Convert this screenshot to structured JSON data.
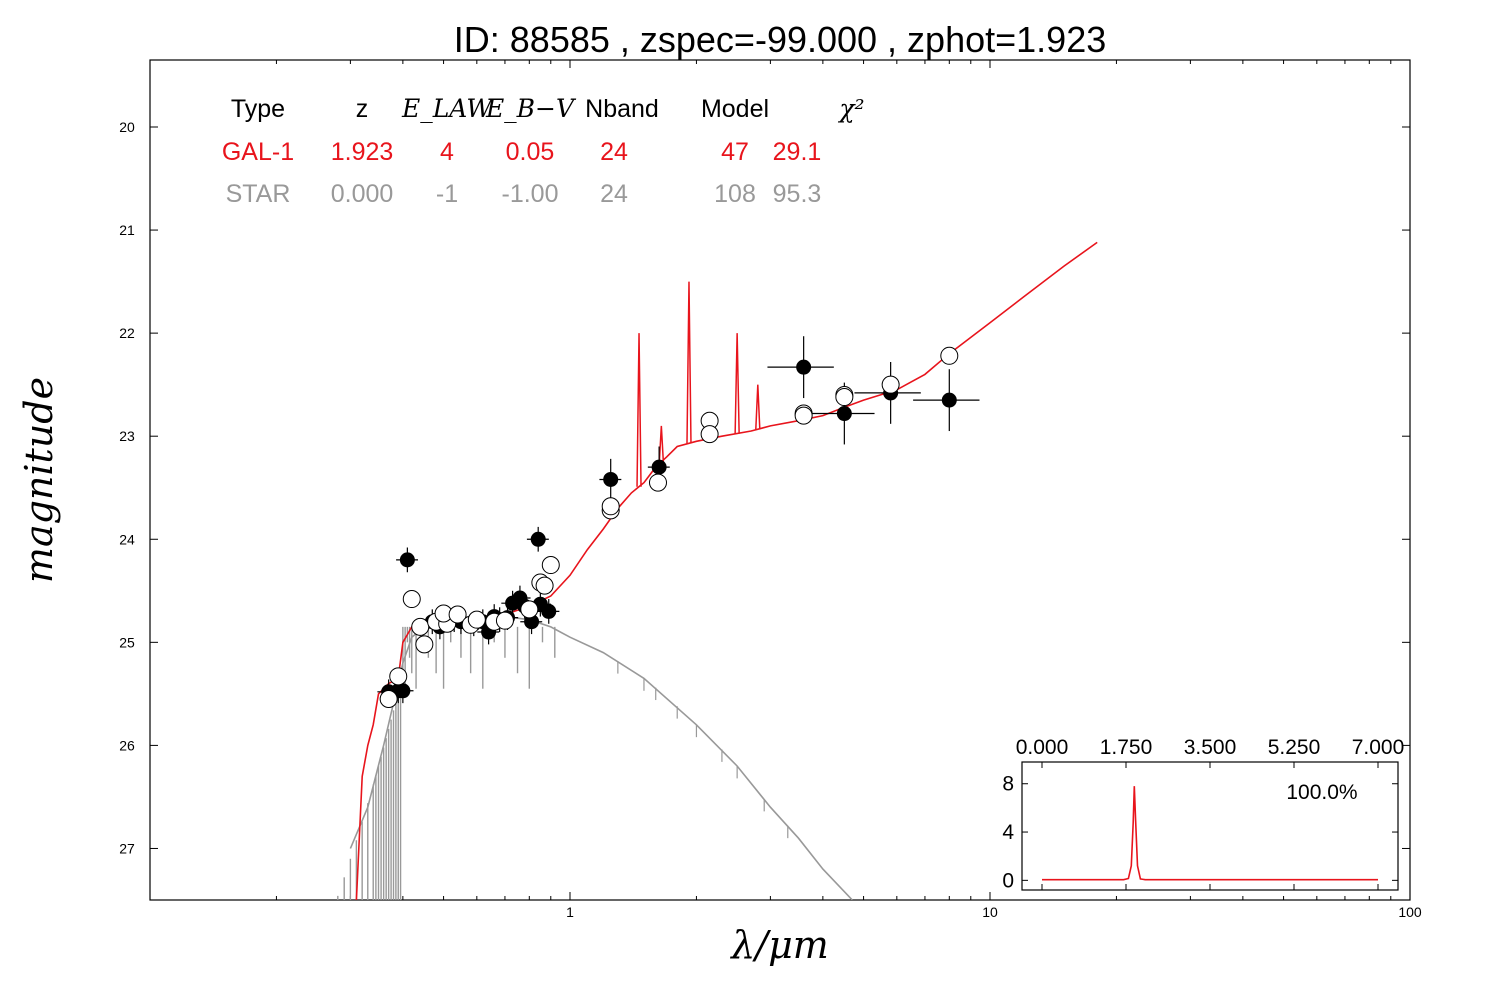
{
  "title": "ID:  88585 , zspec=-99.000 , zphot=1.923",
  "chart_data": {
    "type": "scatter",
    "xlabel": "λ/μm",
    "ylabel": "magnitude",
    "xscale": "log",
    "xlim": [
      0.1,
      100
    ],
    "ylim": [
      27.5,
      19.35
    ],
    "y_inverted": true,
    "x_ticks": [
      "1",
      "10",
      "100"
    ],
    "y_ticks": [
      "20",
      "21",
      "22",
      "23",
      "24",
      "25",
      "26",
      "27"
    ],
    "colors": {
      "galaxy": "#e8141c",
      "star": "#999999",
      "points": "#000000"
    },
    "fit_table": {
      "headers": [
        "Type",
        "z",
        "E_LAW",
        "E_B−V",
        "Nband",
        "Model",
        "χ²"
      ],
      "rows": [
        {
          "color": "#e8141c",
          "cells": [
            "GAL-1",
            "1.923",
            "4",
            "0.05",
            "24",
            "47",
            "29.1"
          ]
        },
        {
          "color": "#999999",
          "cells": [
            "STAR",
            "0.000",
            "-1",
            "-1.00",
            "24",
            "108",
            "95.3"
          ]
        }
      ]
    },
    "series": [
      {
        "kind": "model-galaxy",
        "points": [
          [
            0.31,
            27.5
          ],
          [
            0.32,
            26.3
          ],
          [
            0.33,
            26.0
          ],
          [
            0.34,
            25.8
          ],
          [
            0.35,
            25.5
          ],
          [
            0.37,
            25.4
          ],
          [
            0.39,
            25.35
          ],
          [
            0.4,
            25.0
          ],
          [
            0.42,
            24.85
          ],
          [
            0.45,
            24.85
          ],
          [
            0.5,
            24.83
          ],
          [
            0.55,
            24.78
          ],
          [
            0.6,
            24.75
          ],
          [
            0.65,
            24.75
          ],
          [
            0.7,
            24.73
          ],
          [
            0.8,
            24.65
          ],
          [
            0.9,
            24.55
          ],
          [
            1.0,
            24.35
          ],
          [
            1.1,
            24.1
          ],
          [
            1.2,
            23.9
          ],
          [
            1.3,
            23.7
          ],
          [
            1.4,
            23.55
          ],
          [
            1.5,
            23.45
          ],
          [
            1.6,
            23.3
          ],
          [
            1.7,
            23.2
          ],
          [
            1.8,
            23.1
          ],
          [
            2.0,
            23.05
          ],
          [
            2.3,
            23.0
          ],
          [
            2.7,
            22.95
          ],
          [
            3.0,
            22.9
          ],
          [
            3.5,
            22.85
          ],
          [
            4.0,
            22.8
          ],
          [
            4.5,
            22.72
          ],
          [
            5.0,
            22.65
          ],
          [
            6.0,
            22.55
          ],
          [
            7.0,
            22.4
          ],
          [
            8.0,
            22.2
          ],
          [
            10.0,
            21.9
          ],
          [
            12.0,
            21.65
          ],
          [
            15.0,
            21.35
          ],
          [
            18.0,
            21.12
          ]
        ],
        "emission_lines": [
          [
            1.46,
            22.0
          ],
          [
            1.65,
            22.9
          ],
          [
            1.92,
            21.5
          ],
          [
            2.5,
            22.0
          ],
          [
            2.8,
            22.5
          ]
        ]
      },
      {
        "kind": "model-star",
        "points": [
          [
            0.3,
            27.0
          ],
          [
            0.33,
            26.6
          ],
          [
            0.36,
            26.0
          ],
          [
            0.4,
            25.2
          ],
          [
            0.42,
            24.95
          ],
          [
            0.45,
            24.85
          ],
          [
            0.5,
            24.83
          ],
          [
            0.55,
            24.8
          ],
          [
            0.6,
            24.78
          ],
          [
            0.7,
            24.75
          ],
          [
            0.8,
            24.78
          ],
          [
            0.9,
            24.85
          ],
          [
            1.0,
            24.95
          ],
          [
            1.2,
            25.1
          ],
          [
            1.5,
            25.35
          ],
          [
            2.0,
            25.8
          ],
          [
            2.5,
            26.2
          ],
          [
            3.0,
            26.6
          ],
          [
            3.5,
            26.9
          ],
          [
            4.0,
            27.2
          ],
          [
            4.7,
            27.5
          ]
        ]
      },
      {
        "kind": "observed",
        "points": [
          {
            "x": 0.37,
            "y": 25.48
          },
          {
            "x": 0.39,
            "y": 25.47
          },
          {
            "x": 0.4,
            "y": 25.47
          },
          {
            "x": 0.41,
            "y": 24.2
          },
          {
            "x": 0.47,
            "y": 24.8
          },
          {
            "x": 0.49,
            "y": 24.85
          },
          {
            "x": 0.53,
            "y": 24.78
          },
          {
            "x": 0.55,
            "y": 24.8
          },
          {
            "x": 0.59,
            "y": 24.82
          },
          {
            "x": 0.62,
            "y": 24.8
          },
          {
            "x": 0.64,
            "y": 24.9
          },
          {
            "x": 0.66,
            "y": 24.75
          },
          {
            "x": 0.68,
            "y": 24.78
          },
          {
            "x": 0.71,
            "y": 24.76
          },
          {
            "x": 0.73,
            "y": 24.62
          },
          {
            "x": 0.76,
            "y": 24.57
          },
          {
            "x": 0.78,
            "y": 24.65
          },
          {
            "x": 0.81,
            "y": 24.8
          },
          {
            "x": 0.84,
            "y": 24.0
          },
          {
            "x": 0.85,
            "y": 24.63
          },
          {
            "x": 0.89,
            "y": 24.7
          },
          {
            "x": 1.25,
            "y": 23.42
          },
          {
            "x": 1.63,
            "y": 23.3
          },
          {
            "x": 3.6,
            "y": 22.33
          },
          {
            "x": 4.5,
            "y": 22.78
          },
          {
            "x": 5.8,
            "y": 22.58
          },
          {
            "x": 8.0,
            "y": 22.65
          }
        ]
      },
      {
        "kind": "model-magnitudes",
        "points": [
          {
            "x": 0.37,
            "y": 25.55
          },
          {
            "x": 0.39,
            "y": 25.33
          },
          {
            "x": 0.42,
            "y": 24.58
          },
          {
            "x": 0.45,
            "y": 25.02
          },
          {
            "x": 0.44,
            "y": 24.85
          },
          {
            "x": 0.48,
            "y": 24.8
          },
          {
            "x": 0.51,
            "y": 24.82
          },
          {
            "x": 0.5,
            "y": 24.72
          },
          {
            "x": 0.54,
            "y": 24.73
          },
          {
            "x": 0.58,
            "y": 24.83
          },
          {
            "x": 0.6,
            "y": 24.78
          },
          {
            "x": 0.66,
            "y": 24.8
          },
          {
            "x": 0.7,
            "y": 24.79
          },
          {
            "x": 0.8,
            "y": 24.68
          },
          {
            "x": 0.85,
            "y": 24.42
          },
          {
            "x": 0.87,
            "y": 24.45
          },
          {
            "x": 0.9,
            "y": 24.25
          },
          {
            "x": 1.25,
            "y": 23.72
          },
          {
            "x": 1.25,
            "y": 23.68
          },
          {
            "x": 1.62,
            "y": 23.45
          },
          {
            "x": 2.15,
            "y": 22.85
          },
          {
            "x": 2.15,
            "y": 22.98
          },
          {
            "x": 3.6,
            "y": 22.78
          },
          {
            "x": 3.6,
            "y": 22.8
          },
          {
            "x": 4.5,
            "y": 22.6
          },
          {
            "x": 4.5,
            "y": 22.62
          },
          {
            "x": 5.8,
            "y": 22.5
          },
          {
            "x": 8.0,
            "y": 22.22
          }
        ]
      }
    ],
    "inset": {
      "type": "line",
      "x_ticks": [
        "0.000",
        "1.750",
        "3.500",
        "5.250",
        "7.000"
      ],
      "y_ticks": [
        "0",
        "4",
        "8"
      ],
      "xlim": [
        0,
        7
      ],
      "ylim": [
        -0.8,
        9.8
      ],
      "percent_label": "100.0%",
      "points": [
        [
          0,
          0.05
        ],
        [
          1.7,
          0.05
        ],
        [
          1.8,
          0.15
        ],
        [
          1.86,
          1.2
        ],
        [
          1.9,
          4.8
        ],
        [
          1.923,
          7.8
        ],
        [
          1.95,
          5.0
        ],
        [
          1.99,
          1.2
        ],
        [
          2.05,
          0.12
        ],
        [
          2.15,
          0.05
        ],
        [
          7.0,
          0.05
        ]
      ]
    }
  }
}
